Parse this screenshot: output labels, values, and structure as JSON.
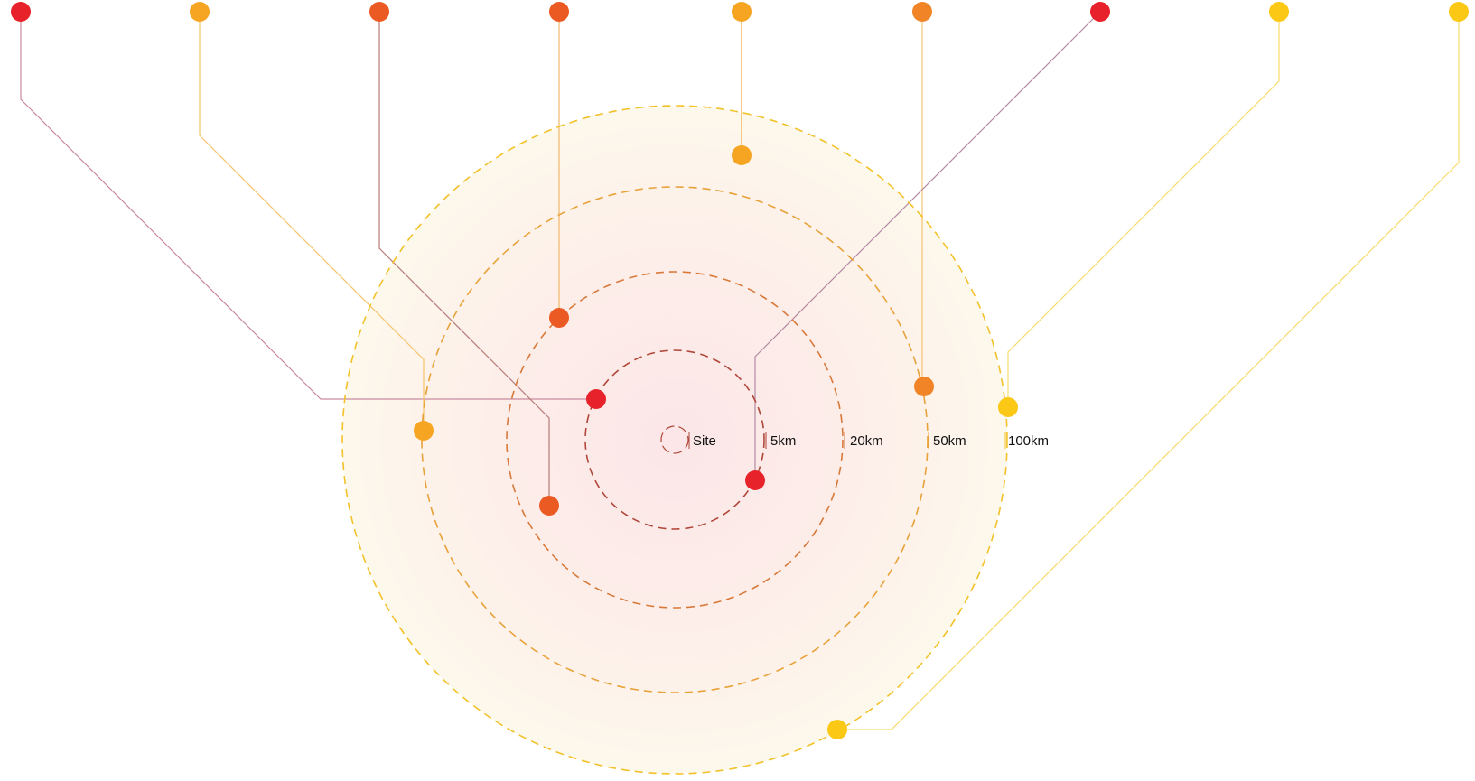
{
  "diagram": {
    "rings": [
      {
        "label": "Site",
        "color": "#b0473a"
      },
      {
        "label": "5km",
        "color": "#b0473a"
      },
      {
        "label": "20km",
        "color": "#d8793a"
      },
      {
        "label": "50km",
        "color": "#e8a23a"
      },
      {
        "label": "100km",
        "color": "#f2c22a"
      }
    ],
    "colors": {
      "red": "#e8222a",
      "red_orange": "#ec5a24",
      "orange": "#f08426",
      "amber": "#f6a522",
      "yellow": "#fbc815",
      "halo_inner": "#fce9ea",
      "halo_outer": "#fdf6e4"
    }
  }
}
